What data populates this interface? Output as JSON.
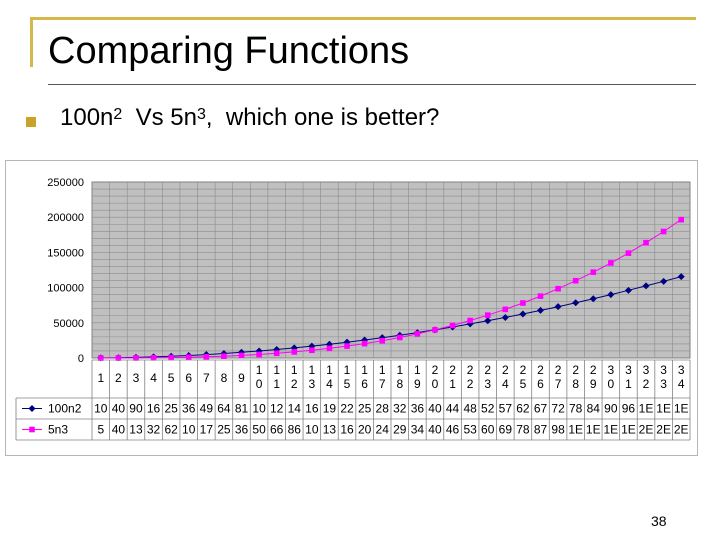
{
  "slide": {
    "title": "Comparing Functions",
    "bullet_main": "100n",
    "bullet_exp1": "2",
    "bullet_mid": "  Vs 5n",
    "bullet_exp2": "3",
    "bullet_tail": ",  which one is better?",
    "page_number": "38"
  },
  "colors": {
    "frame": "#d4b84a",
    "bullet": "#c9a227",
    "plot_background": "#c0c0c0",
    "series_100n2": "#000080",
    "series_5n3": "#ff00ff"
  },
  "chart_data": {
    "type": "line",
    "ylim": [
      0,
      250000
    ],
    "yticks": [
      "250000",
      "200000",
      "150000",
      "100000",
      "50000",
      "0"
    ],
    "yticks_values": [
      250000,
      200000,
      150000,
      100000,
      50000,
      0
    ],
    "grid": true,
    "legend": "bottom-left table",
    "categories": [
      "1",
      "2",
      "3",
      "4",
      "5",
      "6",
      "7",
      "8",
      "9",
      "10",
      "11",
      "12",
      "13",
      "14",
      "15",
      "16",
      "17",
      "18",
      "19",
      "20",
      "21",
      "22",
      "23",
      "24",
      "25",
      "26",
      "27",
      "28",
      "29",
      "30",
      "31",
      "32",
      "33",
      "34"
    ],
    "x": [
      1,
      2,
      3,
      4,
      5,
      6,
      7,
      8,
      9,
      10,
      11,
      12,
      13,
      14,
      15,
      16,
      17,
      18,
      19,
      20,
      21,
      22,
      23,
      24,
      25,
      26,
      27,
      28,
      29,
      30,
      31,
      32,
      33,
      34
    ],
    "series": [
      {
        "name": "100n2",
        "marker": "diamond",
        "color": "#000080",
        "values": [
          100,
          400,
          900,
          1600,
          2500,
          3600,
          4900,
          6400,
          8100,
          10000,
          12100,
          14400,
          16900,
          19600,
          22500,
          25600,
          28900,
          32400,
          36100,
          40000,
          44100,
          48400,
          52900,
          57600,
          62500,
          67600,
          72900,
          78400,
          84100,
          90000,
          96100,
          102400,
          108900,
          115600
        ],
        "table_labels": [
          "10",
          "40",
          "90",
          "16",
          "25",
          "36",
          "49",
          "64",
          "81",
          "10",
          "12",
          "14",
          "16",
          "19",
          "22",
          "25",
          "28",
          "32",
          "36",
          "40",
          "44",
          "48",
          "52",
          "57",
          "62",
          "67",
          "72",
          "78",
          "84",
          "90",
          "96",
          "1E",
          "1E",
          "1E"
        ]
      },
      {
        "name": "5n3",
        "marker": "square",
        "color": "#ff00ff",
        "values": [
          5,
          40,
          135,
          320,
          625,
          1080,
          1715,
          2560,
          3645,
          5000,
          6655,
          8640,
          10985,
          13720,
          16875,
          20480,
          24565,
          29160,
          34295,
          40000,
          46305,
          53240,
          60835,
          69120,
          78125,
          87880,
          98415,
          109760,
          121945,
          135000,
          148955,
          163840,
          179685,
          196520
        ],
        "table_labels": [
          "5",
          "40",
          "13",
          "32",
          "62",
          "10",
          "17",
          "25",
          "36",
          "50",
          "66",
          "86",
          "10",
          "13",
          "16",
          "20",
          "24",
          "29",
          "34",
          "40",
          "46",
          "53",
          "60",
          "69",
          "78",
          "87",
          "98",
          "1E",
          "1E",
          "1E",
          "1E",
          "2E",
          "2E",
          "2E"
        ]
      }
    ]
  }
}
